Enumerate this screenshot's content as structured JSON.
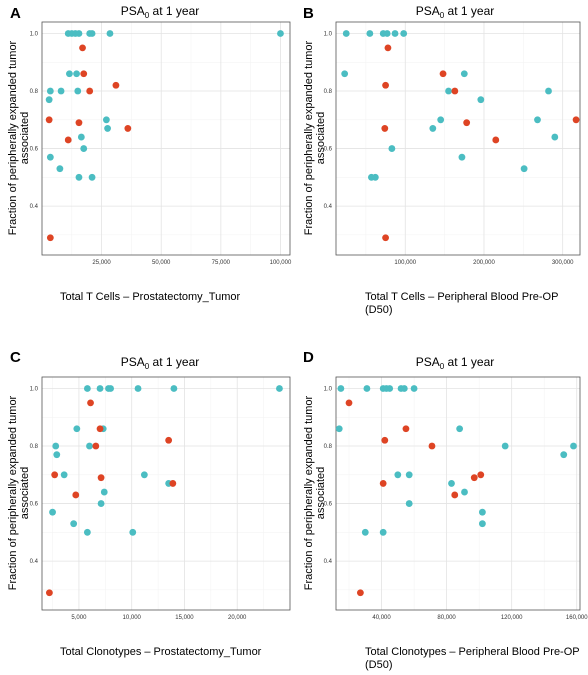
{
  "colors": {
    "series_1": "#4BBDC2",
    "series_2": "#DE4424"
  },
  "chart_data": [
    {
      "type": "scatter",
      "panel": "A",
      "title": "PSA0 at 1 year",
      "title_main": "PSA",
      "title_sub": "0",
      "title_rest": " at 1 year",
      "xlabel": [
        "Total T Cells – Prostatectomy_Tumor"
      ],
      "ylabel": [
        "Fraction of peripherally expanded tumor",
        "associated"
      ],
      "xlim": [
        0,
        104000
      ],
      "ylim": [
        0.23,
        1.04
      ],
      "xticks": [
        25000,
        50000,
        75000,
        100000
      ],
      "xtick_labels": [
        "25,000",
        "50,000",
        "75,000",
        "100,000"
      ],
      "yticks": [
        0.4,
        0.6,
        0.8,
        1.0
      ],
      "ytick_labels": [
        "0.4",
        "0.6",
        "0.8",
        "1.0"
      ],
      "series": [
        {
          "color_key": "series_1",
          "points": [
            [
              11000,
              1.0
            ],
            [
              12500,
              1.0
            ],
            [
              14000,
              1.0
            ],
            [
              15500,
              1.0
            ],
            [
              20000,
              1.0
            ],
            [
              21000,
              1.0
            ],
            [
              28500,
              1.0
            ],
            [
              100000,
              1.0
            ],
            [
              11500,
              0.86
            ],
            [
              14500,
              0.86
            ],
            [
              3500,
              0.8
            ],
            [
              8000,
              0.8
            ],
            [
              15000,
              0.8
            ],
            [
              3000,
              0.77
            ],
            [
              27000,
              0.7
            ],
            [
              27500,
              0.67
            ],
            [
              16500,
              0.64
            ],
            [
              17500,
              0.6
            ],
            [
              3500,
              0.57
            ],
            [
              7500,
              0.53
            ],
            [
              15500,
              0.5
            ],
            [
              21000,
              0.5
            ]
          ]
        },
        {
          "color_key": "series_2",
          "points": [
            [
              17000,
              0.95
            ],
            [
              17500,
              0.86
            ],
            [
              31000,
              0.82
            ],
            [
              20000,
              0.8
            ],
            [
              3000,
              0.7
            ],
            [
              15500,
              0.69
            ],
            [
              36000,
              0.67
            ],
            [
              11000,
              0.63
            ],
            [
              3500,
              0.29
            ]
          ]
        }
      ]
    },
    {
      "type": "scatter",
      "panel": "B",
      "title": "PSA0 at 1 year",
      "title_main": "PSA",
      "title_sub": "0",
      "title_rest": " at 1 year",
      "xlabel": [
        "Total T Cells – Peripheral Blood Pre-OP",
        "(D50)"
      ],
      "ylabel": [
        "Fraction of peripherally expanded tumor",
        "associated"
      ],
      "xlim": [
        12000,
        322000
      ],
      "ylim": [
        0.23,
        1.04
      ],
      "xticks": [
        100000,
        200000,
        300000
      ],
      "xtick_labels": [
        "100,000",
        "200,000",
        "300,000"
      ],
      "yticks": [
        0.4,
        0.6,
        0.8,
        1.0
      ],
      "ytick_labels": [
        "0.4",
        "0.6",
        "0.8",
        "1.0"
      ],
      "series": [
        {
          "color_key": "series_1",
          "points": [
            [
              25000,
              1.0
            ],
            [
              55000,
              1.0
            ],
            [
              72000,
              1.0
            ],
            [
              77000,
              1.0
            ],
            [
              87000,
              1.0
            ],
            [
              98000,
              1.0
            ],
            [
              23000,
              0.86
            ],
            [
              175000,
              0.86
            ],
            [
              155000,
              0.8
            ],
            [
              282000,
              0.8
            ],
            [
              196000,
              0.77
            ],
            [
              268000,
              0.7
            ],
            [
              145000,
              0.7
            ],
            [
              135000,
              0.67
            ],
            [
              290000,
              0.64
            ],
            [
              83000,
              0.6
            ],
            [
              172000,
              0.57
            ],
            [
              251000,
              0.53
            ],
            [
              57000,
              0.5
            ],
            [
              62000,
              0.5
            ]
          ]
        },
        {
          "color_key": "series_2",
          "points": [
            [
              78000,
              0.95
            ],
            [
              148000,
              0.86
            ],
            [
              75000,
              0.82
            ],
            [
              163000,
              0.8
            ],
            [
              317000,
              0.7
            ],
            [
              178000,
              0.69
            ],
            [
              74000,
              0.67
            ],
            [
              215000,
              0.63
            ],
            [
              75000,
              0.29
            ]
          ]
        }
      ]
    },
    {
      "type": "scatter",
      "panel": "C",
      "title": "PSA0 at 1 year",
      "title_main": "PSA",
      "title_sub": "0",
      "title_rest": " at 1 year",
      "xlabel": [
        "Total Clonotypes – Prostatectomy_Tumor"
      ],
      "ylabel": [
        "Fraction of peripherally expanded tumor",
        "associated"
      ],
      "xlim": [
        1500,
        25000
      ],
      "ylim": [
        0.23,
        1.04
      ],
      "xticks": [
        5000,
        10000,
        15000,
        20000
      ],
      "xtick_labels": [
        "5,000",
        "10,000",
        "15,000",
        "20,000"
      ],
      "yticks": [
        0.4,
        0.6,
        0.8,
        1.0
      ],
      "ytick_labels": [
        "0.4",
        "0.6",
        "0.8",
        "1.0"
      ],
      "series": [
        {
          "color_key": "series_1",
          "points": [
            [
              5800,
              1.0
            ],
            [
              7000,
              1.0
            ],
            [
              7800,
              1.0
            ],
            [
              8000,
              1.0
            ],
            [
              10600,
              1.0
            ],
            [
              14000,
              1.0
            ],
            [
              24000,
              1.0
            ],
            [
              4800,
              0.86
            ],
            [
              7300,
              0.86
            ],
            [
              2800,
              0.8
            ],
            [
              6000,
              0.8
            ],
            [
              2900,
              0.77
            ],
            [
              11200,
              0.7
            ],
            [
              3600,
              0.7
            ],
            [
              13500,
              0.67
            ],
            [
              7400,
              0.64
            ],
            [
              7100,
              0.6
            ],
            [
              2500,
              0.57
            ],
            [
              4500,
              0.53
            ],
            [
              5800,
              0.5
            ],
            [
              10100,
              0.5
            ]
          ]
        },
        {
          "color_key": "series_2",
          "points": [
            [
              6100,
              0.95
            ],
            [
              7000,
              0.86
            ],
            [
              13500,
              0.82
            ],
            [
              6600,
              0.8
            ],
            [
              2700,
              0.7
            ],
            [
              7100,
              0.69
            ],
            [
              13900,
              0.67
            ],
            [
              4700,
              0.63
            ],
            [
              2200,
              0.29
            ]
          ]
        }
      ]
    },
    {
      "type": "scatter",
      "panel": "D",
      "title": "PSA0 at 1 year",
      "title_main": "PSA",
      "title_sub": "0",
      "title_rest": " at 1 year",
      "xlabel": [
        "Total Clonotypes – Peripheral Blood Pre-OP",
        "(D50)"
      ],
      "ylabel": [
        "Fraction of peripherally expanded tumor",
        "associated"
      ],
      "xlim": [
        12000,
        162000
      ],
      "ylim": [
        0.23,
        1.04
      ],
      "xticks": [
        40000,
        80000,
        120000,
        160000
      ],
      "xtick_labels": [
        "40,000",
        "80,000",
        "120,000",
        "160,000"
      ],
      "yticks": [
        0.4,
        0.6,
        0.8,
        1.0
      ],
      "ytick_labels": [
        "0.4",
        "0.6",
        "0.8",
        "1.0"
      ],
      "series": [
        {
          "color_key": "series_1",
          "points": [
            [
              15000,
              1.0
            ],
            [
              31000,
              1.0
            ],
            [
              41000,
              1.0
            ],
            [
              43000,
              1.0
            ],
            [
              45000,
              1.0
            ],
            [
              52000,
              1.0
            ],
            [
              54000,
              1.0
            ],
            [
              60000,
              1.0
            ],
            [
              14000,
              0.86
            ],
            [
              88000,
              0.86
            ],
            [
              116000,
              0.8
            ],
            [
              158000,
              0.8
            ],
            [
              152000,
              0.77
            ],
            [
              50000,
              0.7
            ],
            [
              57000,
              0.7
            ],
            [
              83000,
              0.67
            ],
            [
              91000,
              0.64
            ],
            [
              57000,
              0.6
            ],
            [
              102000,
              0.57
            ],
            [
              102000,
              0.53
            ],
            [
              30000,
              0.5
            ],
            [
              41000,
              0.5
            ]
          ]
        },
        {
          "color_key": "series_2",
          "points": [
            [
              20000,
              0.95
            ],
            [
              55000,
              0.86
            ],
            [
              42000,
              0.82
            ],
            [
              71000,
              0.8
            ],
            [
              101000,
              0.7
            ],
            [
              97000,
              0.69
            ],
            [
              41000,
              0.67
            ],
            [
              85000,
              0.63
            ],
            [
              27000,
              0.29
            ]
          ]
        }
      ]
    }
  ]
}
